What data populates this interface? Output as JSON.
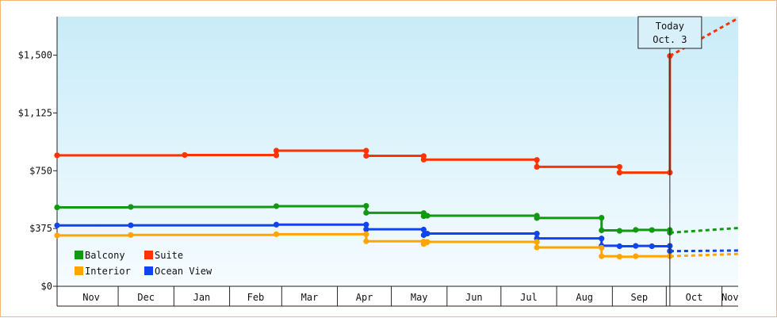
{
  "chart_data": {
    "type": "line",
    "title": "",
    "xlabel": "",
    "ylabel": "",
    "ylim": [
      0,
      1750
    ],
    "y_ticks": [
      {
        "value": 0,
        "label": "$0"
      },
      {
        "value": 375,
        "label": "$375"
      },
      {
        "value": 750,
        "label": "$750"
      },
      {
        "value": 1125,
        "label": "$1,125"
      },
      {
        "value": 1500,
        "label": "$1,500"
      }
    ],
    "x_axis": {
      "start": "2023-10-28",
      "end": "2024-11-10",
      "months": [
        {
          "label": "Nov",
          "start": "2023-11-01",
          "end": "2023-12-01"
        },
        {
          "label": "Dec",
          "start": "2023-12-01",
          "end": "2024-01-01"
        },
        {
          "label": "Jan",
          "start": "2024-01-01",
          "end": "2024-02-01"
        },
        {
          "label": "Feb",
          "start": "2024-02-01",
          "end": "2024-03-01"
        },
        {
          "label": "Mar",
          "start": "2024-03-01",
          "end": "2024-04-01"
        },
        {
          "label": "Apr",
          "start": "2024-04-01",
          "end": "2024-05-01"
        },
        {
          "label": "May",
          "start": "2024-05-01",
          "end": "2024-06-01"
        },
        {
          "label": "Jun",
          "start": "2024-06-01",
          "end": "2024-07-01"
        },
        {
          "label": "Jul",
          "start": "2024-07-01",
          "end": "2024-08-01"
        },
        {
          "label": "Aug",
          "start": "2024-08-01",
          "end": "2024-09-01"
        },
        {
          "label": "Sep",
          "start": "2024-09-01",
          "end": "2024-10-01"
        },
        {
          "label": "Oct",
          "start": "2024-10-01",
          "end": "2024-11-01"
        },
        {
          "label": "Nov",
          "start": "2024-11-01",
          "end": "2024-11-10"
        }
      ]
    },
    "today": {
      "line1": "Today",
      "line2": "Oct. 3",
      "date": "2024-10-03"
    },
    "legend_placement": "bottom-left",
    "grid": false,
    "series": [
      {
        "name": "Suite",
        "color": "#ff3300",
        "points": [
          {
            "date": "2023-10-28",
            "value": 850
          },
          {
            "date": "2024-01-07",
            "value": 852
          },
          {
            "date": "2024-02-27",
            "value": 850
          },
          {
            "date": "2024-02-27",
            "value": 880
          },
          {
            "date": "2024-04-17",
            "value": 880
          },
          {
            "date": "2024-04-17",
            "value": 847
          },
          {
            "date": "2024-05-19",
            "value": 845
          },
          {
            "date": "2024-05-19",
            "value": 822
          },
          {
            "date": "2024-07-21",
            "value": 820
          },
          {
            "date": "2024-07-21",
            "value": 775
          },
          {
            "date": "2024-09-05",
            "value": 775
          },
          {
            "date": "2024-09-05",
            "value": 738
          },
          {
            "date": "2024-10-03",
            "value": 738
          },
          {
            "date": "2024-10-03",
            "value": 1495
          }
        ],
        "projection": [
          {
            "date": "2024-10-03",
            "value": 1495
          },
          {
            "date": "2024-11-10",
            "value": 1740
          }
        ]
      },
      {
        "name": "Balcony",
        "color": "#119911",
        "points": [
          {
            "date": "2023-10-28",
            "value": 512
          },
          {
            "date": "2023-12-08",
            "value": 515
          },
          {
            "date": "2024-02-27",
            "value": 520
          },
          {
            "date": "2024-04-17",
            "value": 522
          },
          {
            "date": "2024-04-17",
            "value": 477
          },
          {
            "date": "2024-05-19",
            "value": 475
          },
          {
            "date": "2024-05-19",
            "value": 455
          },
          {
            "date": "2024-05-21",
            "value": 458
          },
          {
            "date": "2024-07-21",
            "value": 458
          },
          {
            "date": "2024-07-21",
            "value": 443
          },
          {
            "date": "2024-08-26",
            "value": 445
          },
          {
            "date": "2024-08-26",
            "value": 363
          },
          {
            "date": "2024-09-05",
            "value": 360
          },
          {
            "date": "2024-09-14",
            "value": 366
          },
          {
            "date": "2024-09-23",
            "value": 365
          },
          {
            "date": "2024-10-03",
            "value": 365
          },
          {
            "date": "2024-10-03",
            "value": 348
          }
        ],
        "projection": [
          {
            "date": "2024-10-03",
            "value": 348
          },
          {
            "date": "2024-11-10",
            "value": 378
          }
        ]
      },
      {
        "name": "Ocean View",
        "color": "#1144ee",
        "points": [
          {
            "date": "2023-10-28",
            "value": 395
          },
          {
            "date": "2023-12-08",
            "value": 396
          },
          {
            "date": "2024-02-27",
            "value": 400
          },
          {
            "date": "2024-04-17",
            "value": 400
          },
          {
            "date": "2024-04-17",
            "value": 370
          },
          {
            "date": "2024-05-19",
            "value": 368
          },
          {
            "date": "2024-05-19",
            "value": 332
          },
          {
            "date": "2024-05-21",
            "value": 342
          },
          {
            "date": "2024-07-21",
            "value": 342
          },
          {
            "date": "2024-07-21",
            "value": 311
          },
          {
            "date": "2024-08-26",
            "value": 310
          },
          {
            "date": "2024-08-26",
            "value": 263
          },
          {
            "date": "2024-09-05",
            "value": 260
          },
          {
            "date": "2024-09-14",
            "value": 262
          },
          {
            "date": "2024-09-23",
            "value": 260
          },
          {
            "date": "2024-10-03",
            "value": 262
          },
          {
            "date": "2024-10-03",
            "value": 228
          }
        ],
        "projection": [
          {
            "date": "2024-10-03",
            "value": 228
          },
          {
            "date": "2024-11-10",
            "value": 232
          }
        ]
      },
      {
        "name": "Interior",
        "color": "#ffa500",
        "points": [
          {
            "date": "2023-10-28",
            "value": 330
          },
          {
            "date": "2023-12-08",
            "value": 333
          },
          {
            "date": "2024-02-27",
            "value": 338
          },
          {
            "date": "2024-04-17",
            "value": 338
          },
          {
            "date": "2024-04-17",
            "value": 292
          },
          {
            "date": "2024-05-19",
            "value": 290
          },
          {
            "date": "2024-05-19",
            "value": 275
          },
          {
            "date": "2024-05-21",
            "value": 288
          },
          {
            "date": "2024-07-21",
            "value": 288
          },
          {
            "date": "2024-07-21",
            "value": 252
          },
          {
            "date": "2024-08-26",
            "value": 250
          },
          {
            "date": "2024-08-26",
            "value": 195
          },
          {
            "date": "2024-09-05",
            "value": 192
          },
          {
            "date": "2024-09-14",
            "value": 195
          },
          {
            "date": "2024-10-03",
            "value": 195
          }
        ],
        "projection": [
          {
            "date": "2024-10-03",
            "value": 195
          },
          {
            "date": "2024-11-10",
            "value": 210
          }
        ]
      }
    ],
    "legend": [
      {
        "name": "Balcony",
        "color": "#119911"
      },
      {
        "name": "Suite",
        "color": "#ff3300"
      },
      {
        "name": "Interior",
        "color": "#ffa500"
      },
      {
        "name": "Ocean View",
        "color": "#1144ee"
      }
    ]
  }
}
